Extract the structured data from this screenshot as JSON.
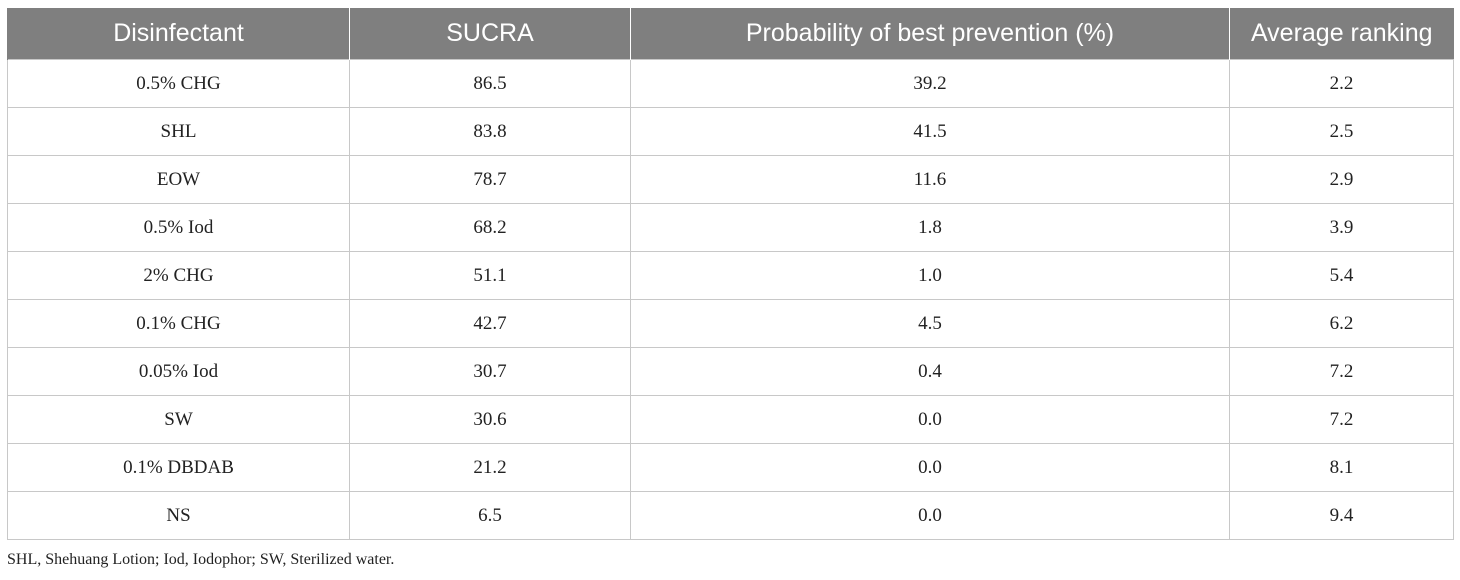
{
  "table": {
    "headers": [
      "Disinfectant",
      "SUCRA",
      "Probability of best prevention (%)",
      "Average ranking"
    ],
    "rows": [
      [
        "0.5% CHG",
        "86.5",
        "39.2",
        "2.2"
      ],
      [
        "SHL",
        "83.8",
        "41.5",
        "2.5"
      ],
      [
        "EOW",
        "78.7",
        "11.6",
        "2.9"
      ],
      [
        "0.5% Iod",
        "68.2",
        "1.8",
        "3.9"
      ],
      [
        "2% CHG",
        "51.1",
        "1.0",
        "5.4"
      ],
      [
        "0.1% CHG",
        "42.7",
        "4.5",
        "6.2"
      ],
      [
        "0.05% Iod",
        "30.7",
        "0.4",
        "7.2"
      ],
      [
        "SW",
        "30.6",
        "0.0",
        "7.2"
      ],
      [
        "0.1% DBDAB",
        "21.2",
        "0.0",
        "8.1"
      ],
      [
        "NS",
        "6.5",
        "0.0",
        "9.4"
      ]
    ]
  },
  "footnote": "SHL, Shehuang Lotion; Iod, Iodophor; SW, Sterilized water.",
  "colors": {
    "header_bg": "#7f7f7f",
    "header_text": "#ffffff",
    "grid": "#c8c8c8"
  }
}
